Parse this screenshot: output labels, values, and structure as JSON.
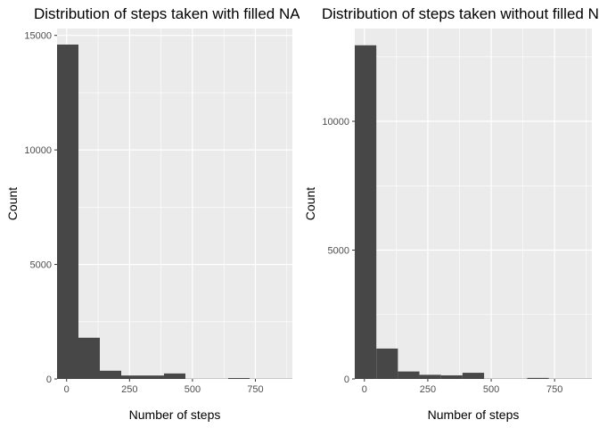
{
  "chart_data": [
    {
      "type": "bar",
      "title": "Distribution of steps taken with filled NA",
      "xlabel": "Number of steps",
      "ylabel": "Count",
      "bin_edges": [
        -38,
        47,
        132,
        217,
        302,
        387,
        472,
        557,
        642,
        727,
        812,
        897
      ],
      "values": [
        14600,
        1800,
        360,
        150,
        150,
        240,
        10,
        10,
        40,
        10,
        10
      ],
      "xlim": [
        -38,
        897
      ],
      "ylim": [
        0,
        15300
      ],
      "x_ticks": [
        0,
        250,
        500,
        750
      ],
      "y_ticks": [
        0,
        5000,
        10000,
        15000
      ],
      "x_tick_labels": [
        "0",
        "250",
        "500",
        "750"
      ],
      "y_tick_labels": [
        "0",
        "5000",
        "10000",
        "15000"
      ],
      "grid": true,
      "bar_color": "#474747",
      "panel_color": "#ebebeb"
    },
    {
      "type": "bar",
      "title": "Distribution of steps taken without filled NA",
      "xlabel": "Number of steps",
      "ylabel": "Count",
      "bin_edges": [
        -38,
        47,
        132,
        217,
        302,
        387,
        472,
        557,
        642,
        727,
        812,
        897
      ],
      "values": [
        12950,
        1180,
        290,
        160,
        140,
        240,
        10,
        10,
        40,
        10,
        10
      ],
      "xlim": [
        -38,
        897
      ],
      "ylim": [
        0,
        13600
      ],
      "x_ticks": [
        0,
        250,
        500,
        750
      ],
      "y_ticks": [
        0,
        5000,
        10000
      ],
      "x_tick_labels": [
        "0",
        "250",
        "500",
        "750"
      ],
      "y_tick_labels": [
        "0",
        "5000",
        "10000"
      ],
      "grid": true,
      "bar_color": "#474747",
      "panel_color": "#ebebeb"
    }
  ]
}
